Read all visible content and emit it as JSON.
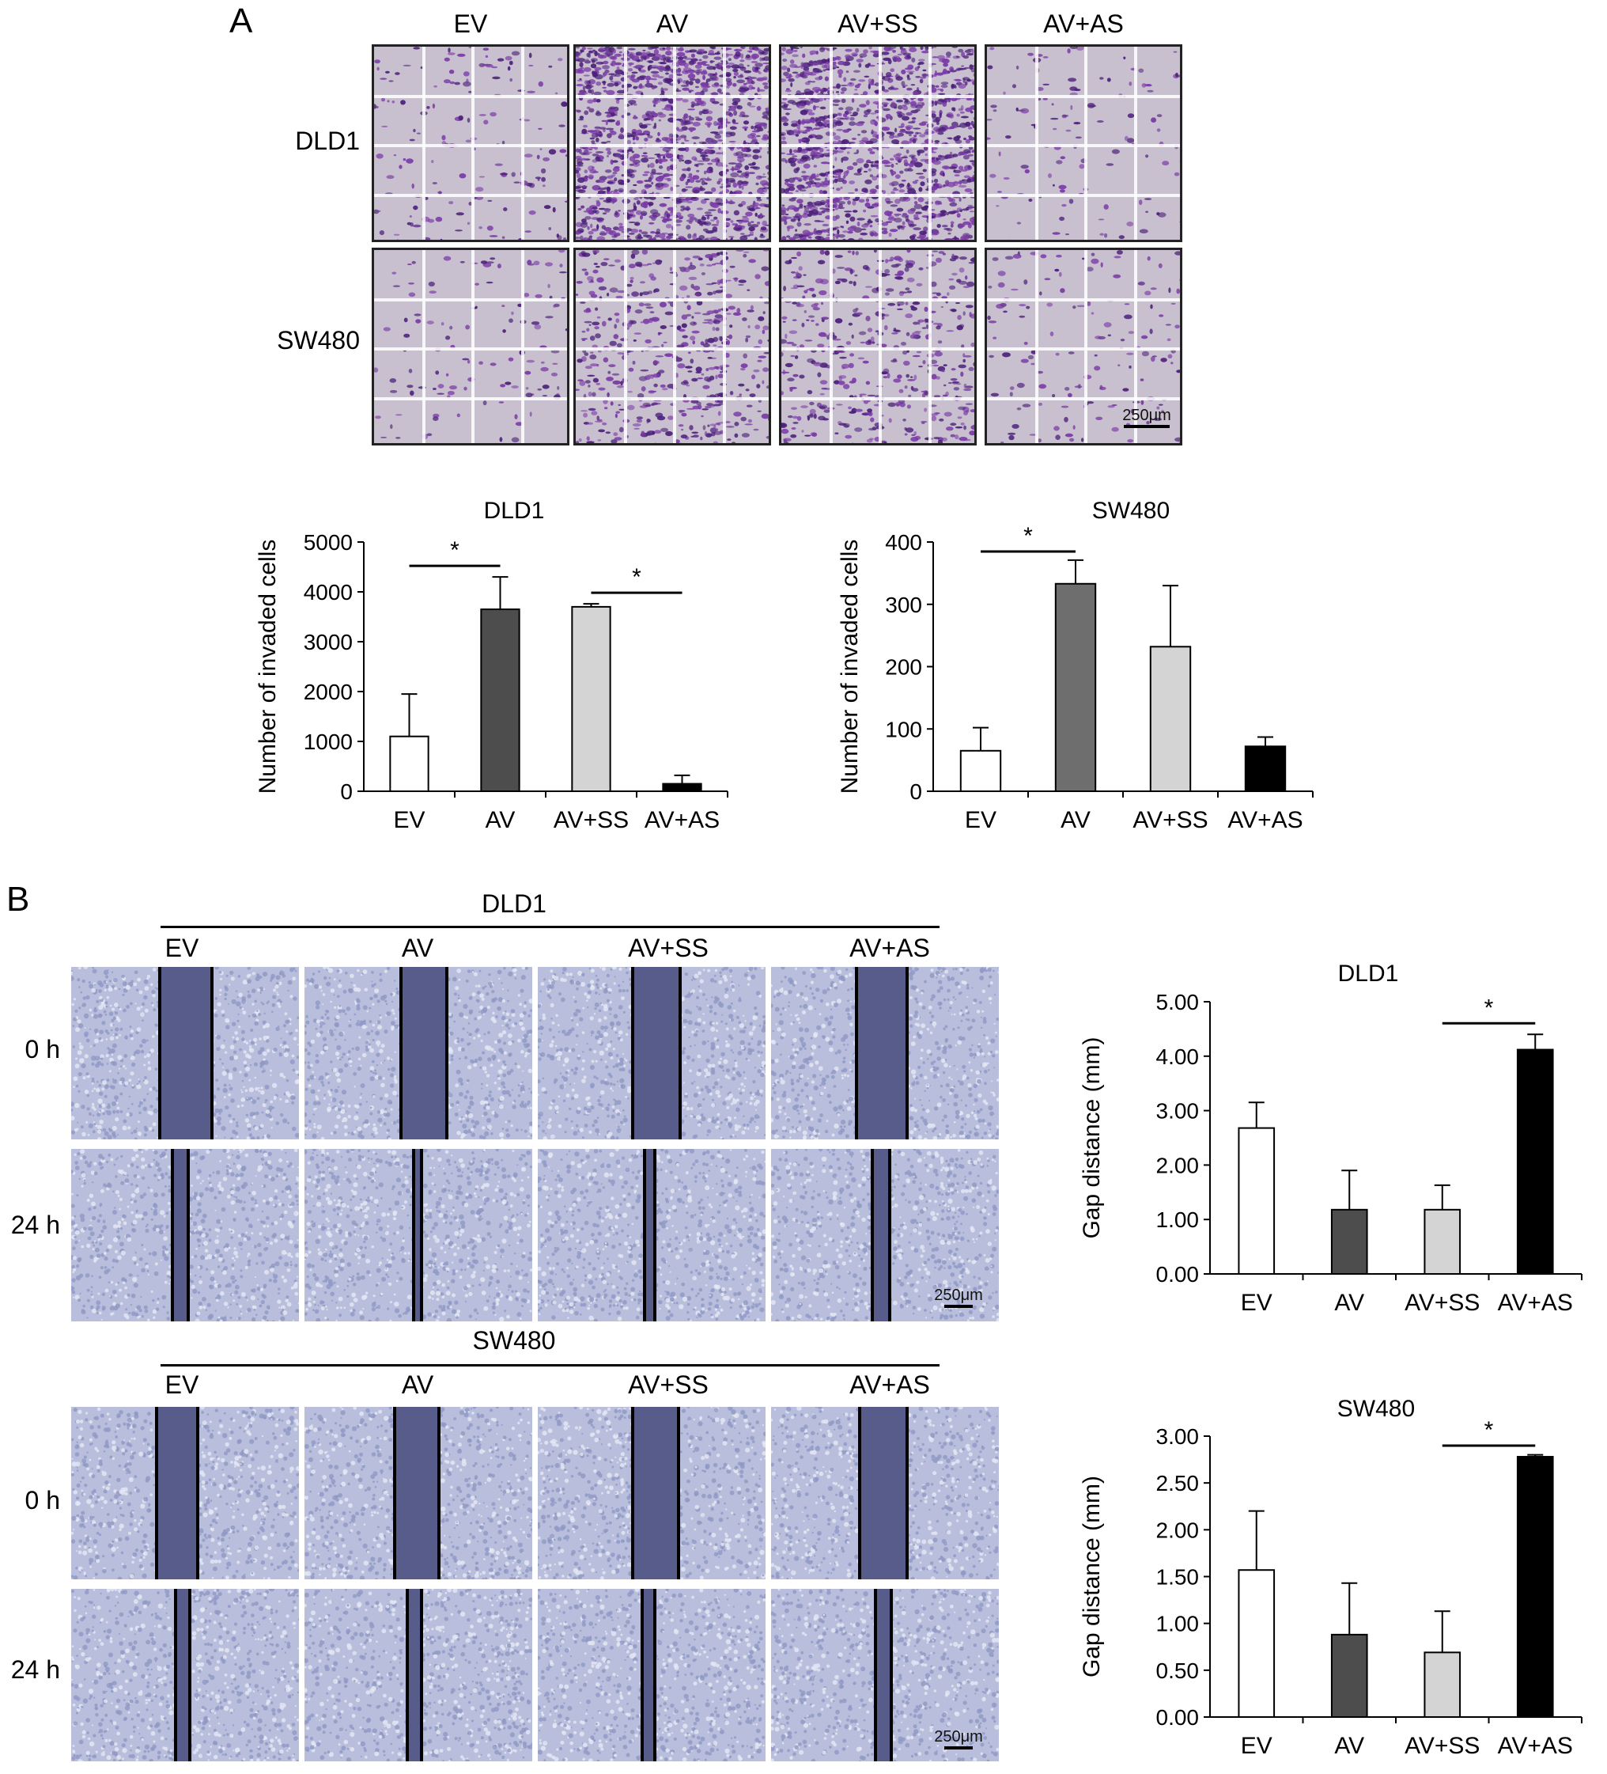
{
  "figure": {
    "panel_a": {
      "letter": "A",
      "columns": [
        "EV",
        "AV",
        "AV+SS",
        "AV+AS"
      ],
      "rows": [
        "DLD1",
        "SW480"
      ],
      "scale_bar": "250μm",
      "colors": {
        "stain_dense": "#4b1f7a",
        "stain_mid": "#7a3aa6",
        "background": "#c9c0cf"
      }
    },
    "panel_b": {
      "letter": "B",
      "groups": [
        {
          "name": "DLD1",
          "columns": [
            "EV",
            "AV",
            "AV+SS",
            "AV+AS"
          ],
          "rows": [
            "0 h",
            "24 h"
          ],
          "scale_bar": "250μm"
        },
        {
          "name": "SW480",
          "columns": [
            "EV",
            "AV",
            "AV+SS",
            "AV+AS"
          ],
          "rows": [
            "0 h",
            "24 h"
          ],
          "scale_bar": "250μm"
        }
      ],
      "colors": {
        "cells": "#8f98c4",
        "gap": "#575c8a",
        "background": "#b8bedc"
      }
    }
  },
  "chart_data": [
    {
      "type": "bar",
      "title": "DLD1",
      "ylabel": "Number of invaded cells",
      "categories": [
        "EV",
        "AV",
        "AV+SS",
        "AV+AS"
      ],
      "values": [
        1100,
        3650,
        3700,
        150
      ],
      "errors": [
        850,
        650,
        60,
        170
      ],
      "ylim": [
        0,
        5000
      ],
      "yticks": [
        "0",
        "1000",
        "2000",
        "3000",
        "4000",
        "5000"
      ],
      "colors": [
        "#ffffff",
        "#4d4d4d",
        "#d4d4d4",
        "#000000"
      ],
      "significance": [
        {
          "from": 0,
          "to": 1,
          "label": "*"
        },
        {
          "from": 2,
          "to": 3,
          "label": "*"
        }
      ]
    },
    {
      "type": "bar",
      "title": "SW480",
      "ylabel": "Number of invaded cells",
      "categories": [
        "EV",
        "AV",
        "AV+SS",
        "AV+AS"
      ],
      "values": [
        65,
        333,
        232,
        72
      ],
      "errors": [
        37,
        38,
        98,
        15
      ],
      "ylim": [
        0,
        400
      ],
      "yticks": [
        "0",
        "100",
        "200",
        "300",
        "400"
      ],
      "colors": [
        "#ffffff",
        "#6e6e6e",
        "#d4d4d4",
        "#000000"
      ],
      "significance": [
        {
          "from": 0,
          "to": 1,
          "label": "*"
        }
      ]
    },
    {
      "type": "bar",
      "title": "DLD1",
      "ylabel": "Gap distance (mm)",
      "categories": [
        "EV",
        "AV",
        "AV+SS",
        "AV+AS"
      ],
      "values": [
        2.68,
        1.18,
        1.18,
        4.12
      ],
      "errors": [
        0.47,
        0.72,
        0.45,
        0.28
      ],
      "ylim": [
        0,
        5
      ],
      "yticks": [
        "0.00",
        "1.00",
        "2.00",
        "3.00",
        "4.00",
        "5.00"
      ],
      "colors": [
        "#ffffff",
        "#4d4d4d",
        "#d4d4d4",
        "#000000"
      ],
      "significance": [
        {
          "from": 2,
          "to": 3,
          "label": "*"
        }
      ]
    },
    {
      "type": "bar",
      "title": "SW480",
      "ylabel": "Gap distance (mm)",
      "categories": [
        "EV",
        "AV",
        "AV+SS",
        "AV+AS"
      ],
      "values": [
        1.57,
        0.88,
        0.69,
        2.78
      ],
      "errors": [
        0.63,
        0.55,
        0.44,
        0.02
      ],
      "ylim": [
        0,
        3
      ],
      "yticks": [
        "0.00",
        "0.50",
        "1.00",
        "1.50",
        "2.00",
        "2.50",
        "3.00"
      ],
      "colors": [
        "#ffffff",
        "#4d4d4d",
        "#d4d4d4",
        "#000000"
      ],
      "significance": [
        {
          "from": 2,
          "to": 3,
          "label": "*"
        }
      ]
    }
  ]
}
